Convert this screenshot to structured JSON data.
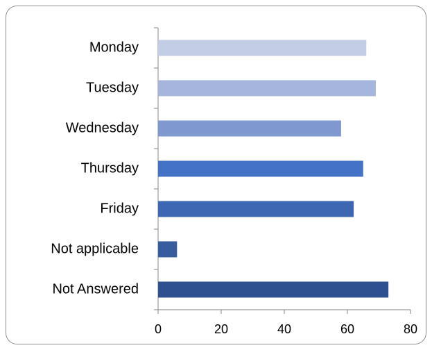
{
  "chart_data": {
    "type": "bar",
    "orientation": "horizontal",
    "categories": [
      "Monday",
      "Tuesday",
      "Wednesday",
      "Thursday",
      "Friday",
      "Not applicable",
      "Not Answered"
    ],
    "values": [
      66,
      69,
      58,
      65,
      62,
      6,
      73
    ],
    "colors": [
      "#c3cde6",
      "#a6b5dc",
      "#7f98d0",
      "#4472c4",
      "#3d67b3",
      "#375d9f",
      "#2f5090"
    ],
    "xlim": [
      0,
      80
    ],
    "xticks": [
      0,
      20,
      40,
      60,
      80
    ],
    "grid": false
  }
}
